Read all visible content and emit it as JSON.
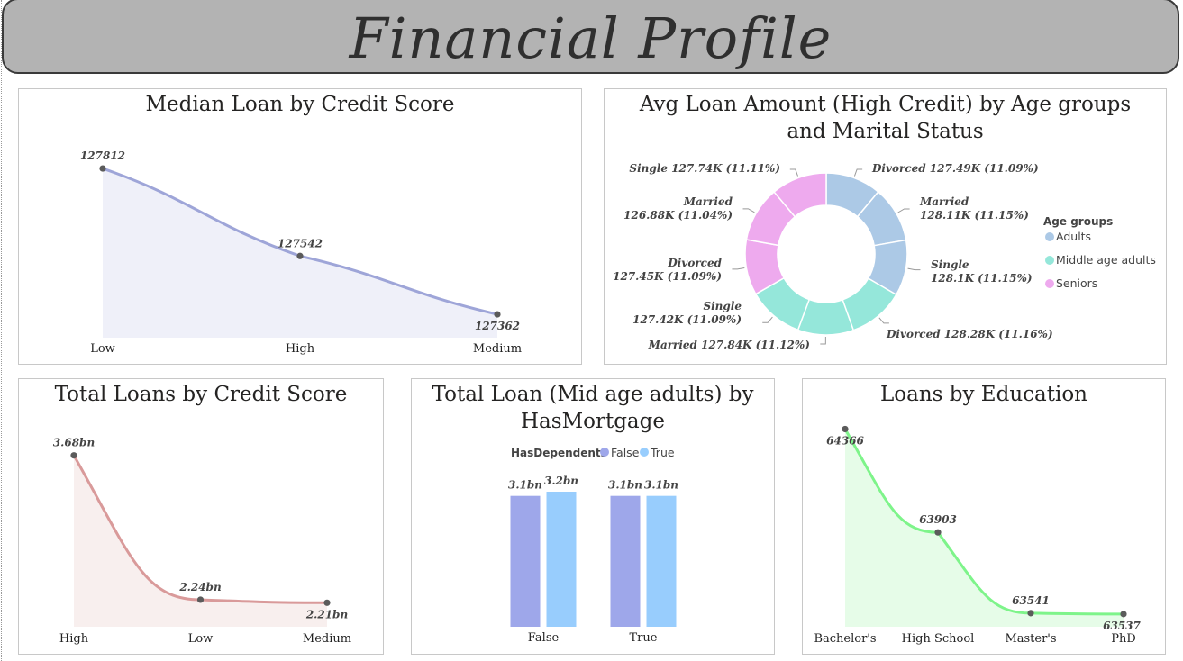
{
  "header": {
    "title": "Financial Profile"
  },
  "colors": {
    "lavender_line": "#9ea5d8",
    "lavender_fill": "#eff0f9",
    "rose_line": "#d99a9a",
    "rose_fill": "#f8efee",
    "green_line": "#7ef48a",
    "green_fill": "#e6fce8",
    "adults": "#acc9e6",
    "middle": "#95e7da",
    "seniors": "#eeaaee",
    "false_bar": "#9ea7ea",
    "true_bar": "#98cdfd",
    "marker": "#5b5b5b"
  },
  "chart_data": [
    {
      "id": "median_loan",
      "type": "area",
      "title": "Median Loan by Credit Score",
      "categories": [
        "Low",
        "High",
        "Medium"
      ],
      "values": [
        127812,
        127542,
        127362
      ],
      "value_labels": [
        "127812",
        "127542",
        "127362"
      ],
      "ylim": [
        127290,
        127840
      ]
    },
    {
      "id": "avg_loan_donut",
      "type": "pie",
      "title": "Avg Loan Amount (High Credit) by Age groups and Marital Status",
      "legend_title": "Age groups",
      "legend_position": "right",
      "legend": [
        {
          "name": "Adults",
          "color": "#acc9e6"
        },
        {
          "name": "Middle age adults",
          "color": "#95e7da"
        },
        {
          "name": "Seniors",
          "color": "#eeaaee"
        }
      ],
      "slices": [
        {
          "group": "Adults",
          "status": "Divorced",
          "value": 127.49,
          "label_lines": [
            "Divorced 127.49K (11.09%)"
          ]
        },
        {
          "group": "Adults",
          "status": "Married",
          "value": 128.11,
          "label_lines": [
            "Married",
            "128.11K (11.15%)"
          ]
        },
        {
          "group": "Adults",
          "status": "Single",
          "value": 128.1,
          "label_lines": [
            "Single",
            "128.1K (11.15%)"
          ]
        },
        {
          "group": "Middle age adults",
          "status": "Divorced",
          "value": 128.28,
          "label_lines": [
            "Divorced 128.28K (11.16%)"
          ]
        },
        {
          "group": "Middle age adults",
          "status": "Married",
          "value": 127.84,
          "label_lines": [
            "Married 127.84K (11.12%)"
          ]
        },
        {
          "group": "Middle age adults",
          "status": "Single",
          "value": 127.42,
          "label_lines": [
            "Single",
            "127.42K (11.09%)"
          ]
        },
        {
          "group": "Seniors",
          "status": "Divorced",
          "value": 127.45,
          "label_lines": [
            "Divorced",
            "127.45K (11.09%)"
          ]
        },
        {
          "group": "Seniors",
          "status": "Married",
          "value": 126.88,
          "label_lines": [
            "Married",
            "126.88K (11.04%)"
          ]
        },
        {
          "group": "Seniors",
          "status": "Single",
          "value": 127.74,
          "label_lines": [
            "Single 127.74K (11.11%)"
          ]
        }
      ]
    },
    {
      "id": "total_loans",
      "type": "area",
      "title": "Total Loans by Credit Score",
      "categories": [
        "High",
        "Low",
        "Medium"
      ],
      "values": [
        3.68,
        2.24,
        2.21
      ],
      "value_labels": [
        "3.68bn",
        "2.24bn",
        "2.21bn"
      ],
      "ylim": [
        1.97,
        3.74
      ]
    },
    {
      "id": "total_loan_mortgage",
      "type": "bar",
      "title": "Total Loan (Mid age adults) by HasMortgage",
      "legend_title": "HasDependents",
      "legend_position": "top",
      "categories": [
        "False",
        "True"
      ],
      "series": [
        {
          "name": "False",
          "values": [
            3.1,
            3.1
          ],
          "labels": [
            "3.1bn",
            "3.1bn"
          ],
          "color": "#9ea7ea"
        },
        {
          "name": "True",
          "values": [
            3.2,
            3.1
          ],
          "labels": [
            "3.2bn",
            "3.1bn"
          ],
          "color": "#98cdfd"
        }
      ],
      "ylim": [
        0,
        3.2
      ]
    },
    {
      "id": "loans_education",
      "type": "area",
      "title": "Loans by Education",
      "categories": [
        "Bachelor's",
        "High School",
        "Master's",
        "PhD"
      ],
      "values": [
        64366,
        63903,
        63541,
        63537
      ],
      "value_labels": [
        "64366",
        "63903",
        "63541",
        "63537"
      ],
      "ylim": [
        63480,
        64380
      ]
    }
  ]
}
